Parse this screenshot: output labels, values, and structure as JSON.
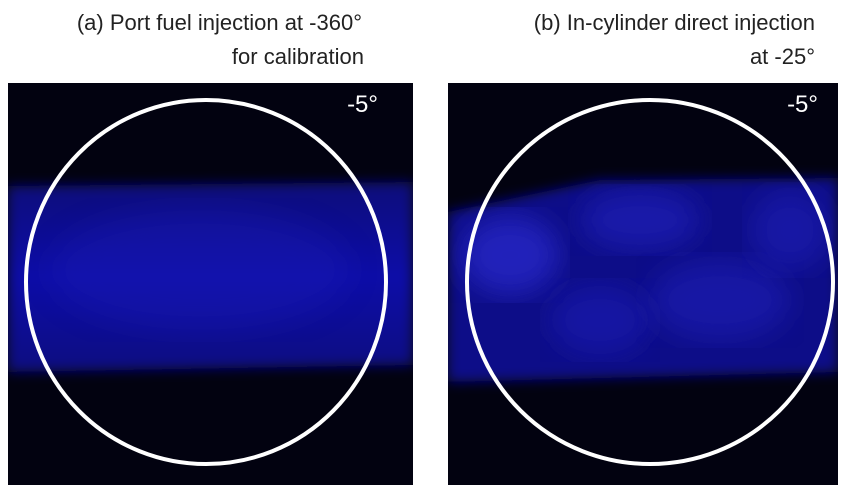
{
  "panels": [
    {
      "title_lines": [
        "(a) Port fuel injection at -360°",
        "for calibration"
      ],
      "label": "-5°"
    },
    {
      "title_lines": [
        "(b) In-cylinder direct injection",
        "at -25°"
      ],
      "label": "-5°"
    }
  ]
}
